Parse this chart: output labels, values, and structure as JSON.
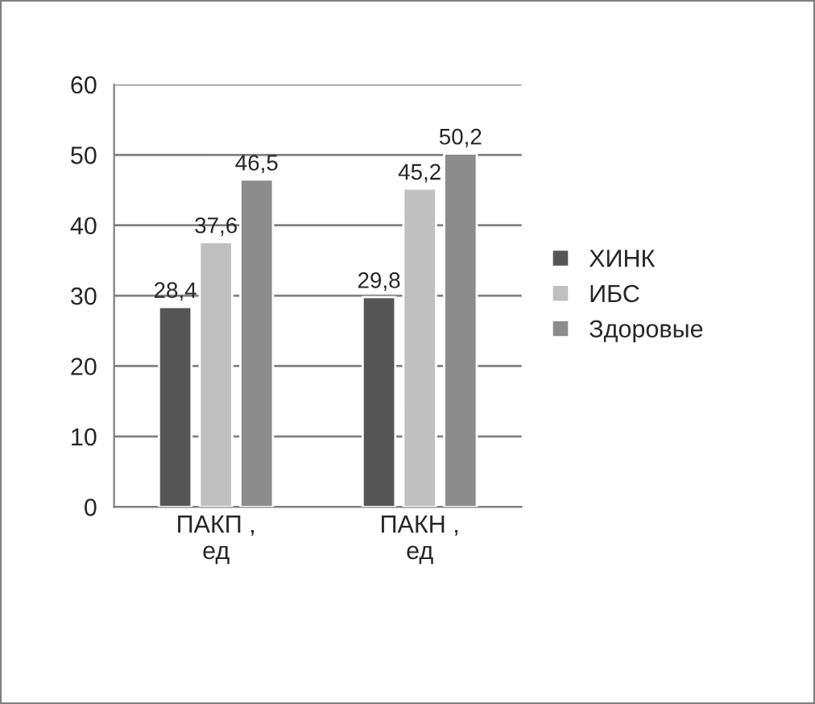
{
  "chart_data": {
    "type": "bar",
    "categories": [
      "ПАКП ,\nед",
      "ПАКН ,\nед"
    ],
    "series": [
      {
        "name": "ХИНК",
        "color": "#555555",
        "values": [
          28.4,
          29.8
        ],
        "value_labels": [
          "28,4",
          "29,8"
        ]
      },
      {
        "name": "ИБС",
        "color": "#c0c0c0",
        "values": [
          37.6,
          45.2
        ],
        "value_labels": [
          "37,6",
          "45,2"
        ]
      },
      {
        "name": "Здоровые",
        "color": "#8c8c8c",
        "values": [
          46.5,
          50.2
        ],
        "value_labels": [
          "46,5",
          "50,2"
        ]
      }
    ],
    "ylim": [
      0,
      60
    ],
    "yticks": [
      0,
      10,
      20,
      30,
      40,
      50,
      60
    ],
    "grid": "y",
    "legend": "right"
  }
}
